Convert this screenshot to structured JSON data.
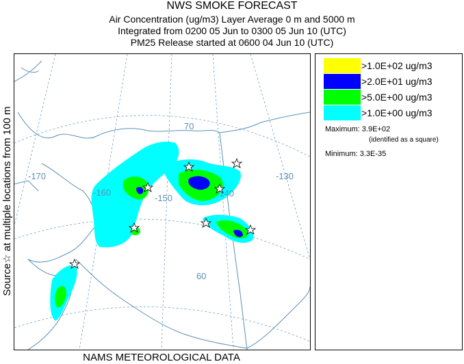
{
  "header": {
    "title": "NWS SMOKE FORECAST",
    "line2": "Air Concentration (ug/m3) Layer Average    0 m and  5000 m",
    "line3": "Integrated from 0200 05 Jun to 0300 05 Jun 10 (UTC)",
    "line4": "PM25 Release started at 0600 04 Jun 10 (UTC)"
  },
  "side_label": "Source☆ at multiple locations   from   100 m",
  "footer": "NAMS METEOROLOGICAL DATA",
  "map": {
    "longitude_labels": [
      "-170",
      "-160",
      "-150",
      "-140",
      "-130"
    ],
    "latitude_labels": [
      "70",
      "60"
    ],
    "colors": {
      "gridline": "#6fa0c8",
      "coast": "#5a8fb5"
    }
  },
  "legend": {
    "items": [
      {
        "label": ">1.0E+02 ug/m3",
        "color": "#ffff00"
      },
      {
        "label": ">2.0E+01 ug/m3",
        "color": "#0000ff"
      },
      {
        "label": ">5.0E+00 ug/m3",
        "color": "#00ff00"
      },
      {
        "label": ">1.0E+00 ug/m3",
        "color": "#00ffff"
      }
    ],
    "maximum_label": "Maximum:",
    "maximum_value": "3.9E+02",
    "maximum_note": "(identified as a square)",
    "minimum_label": "Minimum:",
    "minimum_value": "3.3E-35"
  }
}
